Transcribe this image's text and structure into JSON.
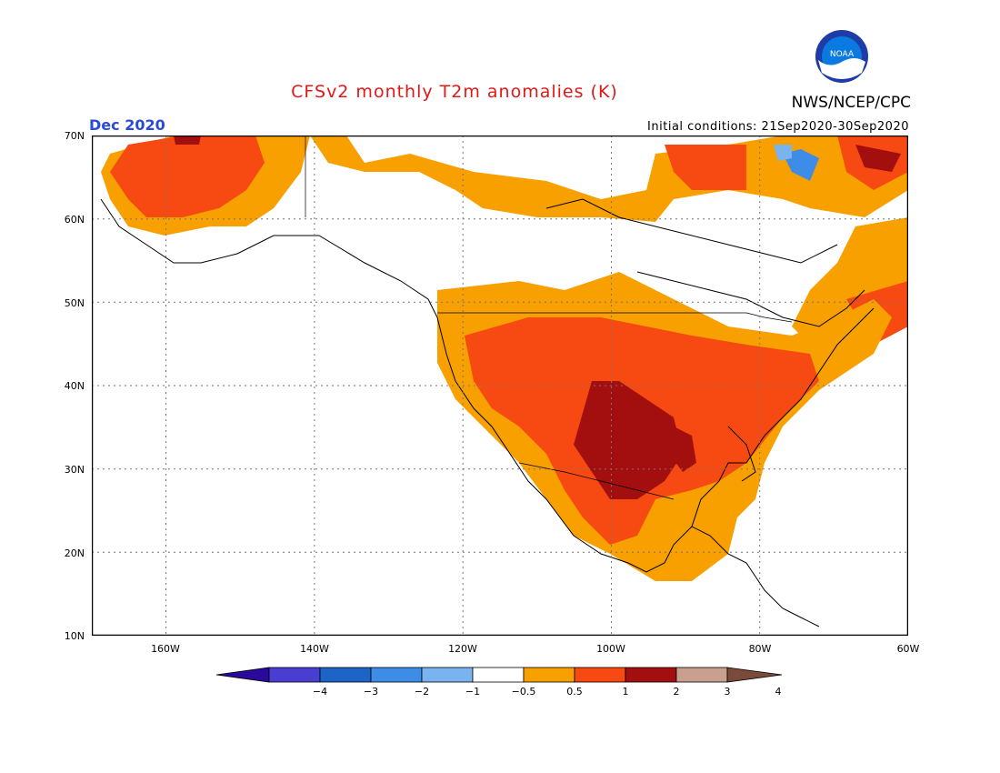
{
  "header": {
    "title": "CFSv2 monthly T2m anomalies (K)",
    "organization": "NWS/NCEP/CPC",
    "logo_label": "NOAA",
    "month": "Dec 2020",
    "initial_conditions": "Initial conditions: 21Sep2020-30Sep2020"
  },
  "map": {
    "lon_range": [
      -170,
      -60
    ],
    "lat_range": [
      10,
      70
    ],
    "lat_ticks": [
      "10N",
      "20N",
      "30N",
      "40N",
      "50N",
      "60N",
      "70N"
    ],
    "lon_ticks": [
      "160W",
      "140W",
      "120W",
      "100W",
      "80W",
      "60W"
    ],
    "gridlines": "dotted"
  },
  "colorbar": {
    "labels": [
      "−4",
      "−3",
      "−2",
      "−1",
      "−0.5",
      "0.5",
      "1",
      "2",
      "3",
      "4"
    ],
    "colors": [
      "#2a0a9c",
      "#4a3ed2",
      "#1e63c8",
      "#3d8ce8",
      "#7ab4f0",
      "#ffffff",
      "#f7a000",
      "#f74a12",
      "#a30e0e",
      "#c9a090",
      "#7a4a3a"
    ]
  },
  "anomaly_colors": {
    "warm1": "#f7a000",
    "warm2": "#f74a12",
    "warm3": "#a30e0e",
    "cool1": "#7ab4f0",
    "cool2": "#3d8ce8"
  }
}
